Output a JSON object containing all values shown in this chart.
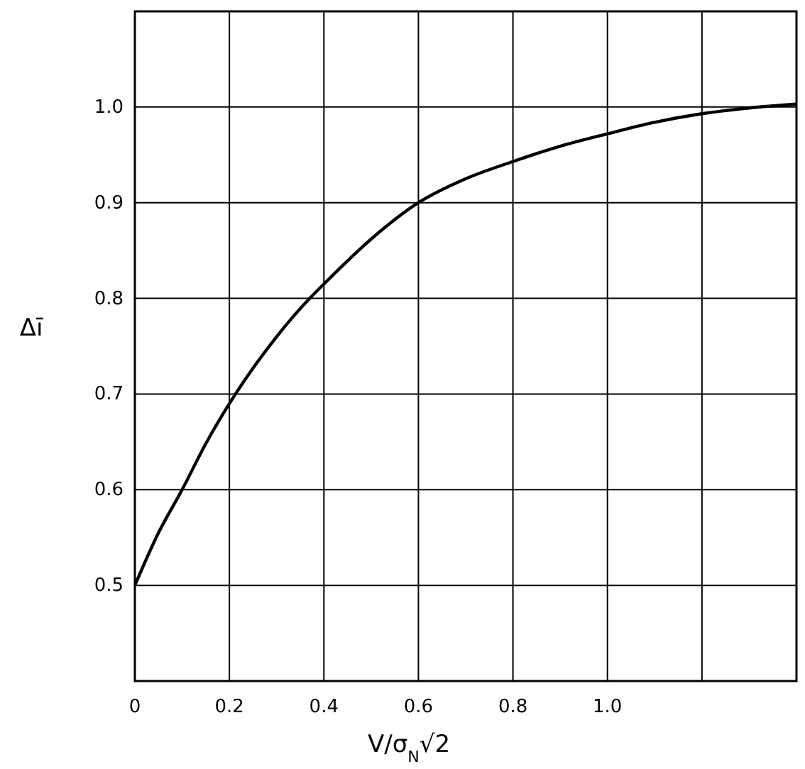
{
  "chart_data": {
    "type": "line",
    "xlabel": "V/σ$_{N}$√2",
    "ylabel": "Δī",
    "x": [
      0,
      0.05,
      0.1,
      0.15,
      0.2,
      0.25,
      0.3,
      0.37,
      0.4,
      0.5,
      0.6,
      0.7,
      0.8,
      0.9,
      1.0,
      1.1,
      1.2,
      1.3,
      1.4
    ],
    "series": [
      {
        "color": "#000000",
        "values": [
          0.5,
          0.555,
          0.6,
          0.648,
          0.69,
          0.727,
          0.76,
          0.8,
          0.815,
          0.862,
          0.9,
          0.925,
          0.943,
          0.959,
          0.972,
          0.984,
          0.993,
          0.999,
          1.003
        ]
      }
    ],
    "xlim": [
      0,
      1.4
    ],
    "ylim": [
      0.4,
      1.1
    ],
    "xticks": [
      0,
      0.2,
      0.4,
      0.6,
      0.8,
      {
        "value": 1.0,
        "label": "1.0"
      },
      {
        "value": 1.2,
        "label": null
      }
    ],
    "yticks": [
      0.5,
      0.6,
      0.7,
      0.8,
      0.9,
      {
        "value": 1.0,
        "label": "1.0"
      }
    ],
    "grid": true,
    "marker": "none",
    "line_style": "solid"
  }
}
